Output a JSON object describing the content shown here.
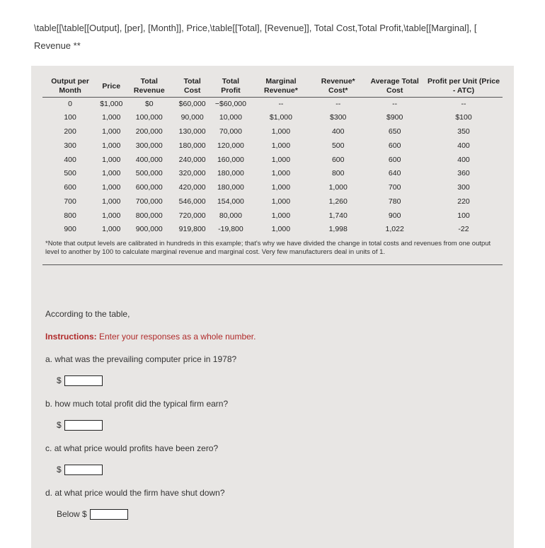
{
  "header": {
    "line1": "\\table[[\\table[[Output], [per], [Month]], Price,\\table[[Total], [Revenue]], Total Cost,Total Profit,\\table[[Marginal], [",
    "line2": "Revenue **"
  },
  "table": {
    "headers": {
      "c0": "Output per Month",
      "c1": "Price",
      "c2": "Total Revenue",
      "c3": "Total Cost",
      "c4": "Total Profit",
      "c5": "Marginal Revenue*",
      "c6": "Revenue* Cost*",
      "c7": "Average Total Cost",
      "c8": "Profit per Unit (Price - ATC)"
    },
    "rows": [
      {
        "c0": "0",
        "c1": "$1,000",
        "c2": "$0",
        "c3": "$60,000",
        "c4": "−$60,000",
        "c5": "--",
        "c6": "--",
        "c7": "--",
        "c8": "--"
      },
      {
        "c0": "100",
        "c1": "1,000",
        "c2": "100,000",
        "c3": "90,000",
        "c4": "10,000",
        "c5": "$1,000",
        "c6": "$300",
        "c7": "$900",
        "c8": "$100"
      },
      {
        "c0": "200",
        "c1": "1,000",
        "c2": "200,000",
        "c3": "130,000",
        "c4": "70,000",
        "c5": "1,000",
        "c6": "400",
        "c7": "650",
        "c8": "350"
      },
      {
        "c0": "300",
        "c1": "1,000",
        "c2": "300,000",
        "c3": "180,000",
        "c4": "120,000",
        "c5": "1,000",
        "c6": "500",
        "c7": "600",
        "c8": "400"
      },
      {
        "c0": "400",
        "c1": "1,000",
        "c2": "400,000",
        "c3": "240,000",
        "c4": "160,000",
        "c5": "1,000",
        "c6": "600",
        "c7": "600",
        "c8": "400"
      },
      {
        "c0": "500",
        "c1": "1,000",
        "c2": "500,000",
        "c3": "320,000",
        "c4": "180,000",
        "c5": "1,000",
        "c6": "800",
        "c7": "640",
        "c8": "360"
      },
      {
        "c0": "600",
        "c1": "1,000",
        "c2": "600,000",
        "c3": "420,000",
        "c4": "180,000",
        "c5": "1,000",
        "c6": "1,000",
        "c7": "700",
        "c8": "300"
      },
      {
        "c0": "700",
        "c1": "1,000",
        "c2": "700,000",
        "c3": "546,000",
        "c4": "154,000",
        "c5": "1,000",
        "c6": "1,260",
        "c7": "780",
        "c8": "220"
      },
      {
        "c0": "800",
        "c1": "1,000",
        "c2": "800,000",
        "c3": "720,000",
        "c4": "80,000",
        "c5": "1,000",
        "c6": "1,740",
        "c7": "900",
        "c8": "100"
      },
      {
        "c0": "900",
        "c1": "1,000",
        "c2": "900,000",
        "c3": "919,800",
        "c4": "-19,800",
        "c5": "1,000",
        "c6": "1,998",
        "c7": "1,022",
        "c8": "-22"
      }
    ],
    "footnote": "*Note that output levels are calibrated in hundreds in this example; that's why we have divided the change in total costs and revenues from one output level to another by 100 to calculate marginal revenue and marginal cost. Very few manufacturers deal in units of 1."
  },
  "body": {
    "intro": "According to the table,",
    "instructions_label": "Instructions:",
    "instructions_text": " Enter your responses as a whole number.",
    "qa": {
      "label": "a.",
      "text": "what was the prevailing computer price in 1978?",
      "prefix": "$"
    },
    "qb": {
      "label": "b.",
      "text": "how much total profit did the typical firm earn?",
      "prefix": "$"
    },
    "qc": {
      "label": "c.",
      "text": "at what price would profits have been zero?",
      "prefix": "$"
    },
    "qd": {
      "label": "d.",
      "text": "at what price would the firm have shut down?",
      "prefix": "Below $"
    }
  },
  "colors": {
    "panel_bg": "#e8e6e4",
    "text": "#333333",
    "red": "#b02a2a",
    "border": "#555555"
  }
}
